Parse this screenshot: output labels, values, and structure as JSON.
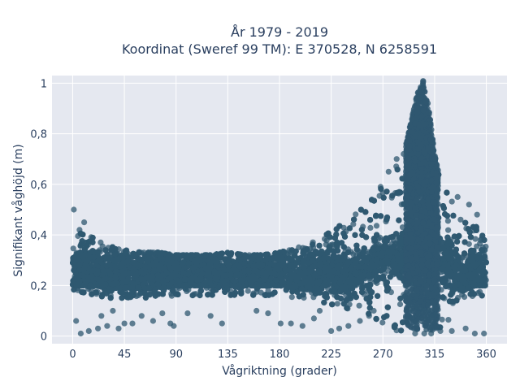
{
  "chart_data": {
    "type": "scatter",
    "title": "År 1979 - 2019",
    "subtitle": "Koordinat (Sweref 99 TM): E 370528, N 6258591",
    "xlabel": "Vågriktning (grader)",
    "ylabel": "Signifikant våghöjd (m)",
    "xlim": [
      -18,
      378
    ],
    "ylim": [
      -0.03,
      1.03
    ],
    "x_ticks": [
      0,
      45,
      90,
      135,
      180,
      225,
      270,
      315,
      360
    ],
    "x_tick_labels": [
      "0",
      "45",
      "90",
      "135",
      "180",
      "225",
      "270",
      "315",
      "360"
    ],
    "y_ticks": [
      0,
      0.2,
      0.4,
      0.6,
      0.8,
      1
    ],
    "y_tick_labels": [
      "0",
      "0,2",
      "0,4",
      "0,6",
      "0,8",
      "1"
    ],
    "grid": true,
    "marker_color": "#2f5870",
    "plot_background": "#e5e8f0",
    "envelope": {
      "x": [
        0,
        10,
        20,
        30,
        45,
        60,
        75,
        90,
        105,
        120,
        135,
        150,
        165,
        180,
        195,
        210,
        225,
        240,
        255,
        270,
        280,
        290,
        295,
        300,
        305,
        310,
        315,
        320,
        330,
        340,
        350,
        360
      ],
      "y_low": [
        0.16,
        0.16,
        0.16,
        0.15,
        0.15,
        0.15,
        0.15,
        0.16,
        0.16,
        0.16,
        0.16,
        0.16,
        0.16,
        0.16,
        0.15,
        0.14,
        0.12,
        0.1,
        0.06,
        0.03,
        0.02,
        0.02,
        0.02,
        0.02,
        0.02,
        0.02,
        0.02,
        0.02,
        0.08,
        0.14,
        0.16,
        0.16
      ],
      "y_high": [
        0.38,
        0.42,
        0.38,
        0.36,
        0.34,
        0.33,
        0.33,
        0.32,
        0.32,
        0.32,
        0.33,
        0.32,
        0.32,
        0.33,
        0.35,
        0.38,
        0.42,
        0.46,
        0.52,
        0.6,
        0.66,
        0.76,
        0.86,
        0.96,
        1.01,
        0.9,
        0.72,
        0.62,
        0.55,
        0.5,
        0.44,
        0.38
      ]
    },
    "outliers": [
      {
        "x": 1,
        "y": 0.5
      },
      {
        "x": 10,
        "y": 0.45
      },
      {
        "x": 6,
        "y": 0.42
      },
      {
        "x": 3,
        "y": 0.06
      },
      {
        "x": 7,
        "y": 0.01
      },
      {
        "x": 14,
        "y": 0.02
      },
      {
        "x": 22,
        "y": 0.03
      },
      {
        "x": 30,
        "y": 0.04
      },
      {
        "x": 40,
        "y": 0.03
      },
      {
        "x": 52,
        "y": 0.05
      },
      {
        "x": 60,
        "y": 0.08
      },
      {
        "x": 78,
        "y": 0.09
      },
      {
        "x": 85,
        "y": 0.05
      },
      {
        "x": 88,
        "y": 0.04
      },
      {
        "x": 130,
        "y": 0.05
      },
      {
        "x": 181,
        "y": 0.05
      },
      {
        "x": 190,
        "y": 0.05
      },
      {
        "x": 200,
        "y": 0.04
      },
      {
        "x": 210,
        "y": 0.07
      },
      {
        "x": 225,
        "y": 0.02
      },
      {
        "x": 232,
        "y": 0.03
      },
      {
        "x": 240,
        "y": 0.04
      },
      {
        "x": 250,
        "y": 0.06
      },
      {
        "x": 258,
        "y": 0.08
      },
      {
        "x": 262,
        "y": 0.1
      },
      {
        "x": 268,
        "y": 0.59
      },
      {
        "x": 275,
        "y": 0.65
      },
      {
        "x": 282,
        "y": 0.7
      },
      {
        "x": 288,
        "y": 0.72
      },
      {
        "x": 335,
        "y": 0.55
      },
      {
        "x": 345,
        "y": 0.52
      },
      {
        "x": 352,
        "y": 0.48
      },
      {
        "x": 355,
        "y": 0.38
      },
      {
        "x": 350,
        "y": 0.01
      },
      {
        "x": 358,
        "y": 0.01
      },
      {
        "x": 342,
        "y": 0.03
      },
      {
        "x": 330,
        "y": 0.02
      },
      {
        "x": 320,
        "y": 0.02
      },
      {
        "x": 312,
        "y": 0.01
      },
      {
        "x": 306,
        "y": 0.01
      },
      {
        "x": 298,
        "y": 0.01
      },
      {
        "x": 120,
        "y": 0.08
      },
      {
        "x": 100,
        "y": 0.09
      },
      {
        "x": 70,
        "y": 0.06
      },
      {
        "x": 45,
        "y": 0.05
      },
      {
        "x": 35,
        "y": 0.1
      },
      {
        "x": 25,
        "y": 0.08
      },
      {
        "x": 160,
        "y": 0.1
      },
      {
        "x": 170,
        "y": 0.09
      },
      {
        "x": 215,
        "y": 0.1
      }
    ]
  }
}
